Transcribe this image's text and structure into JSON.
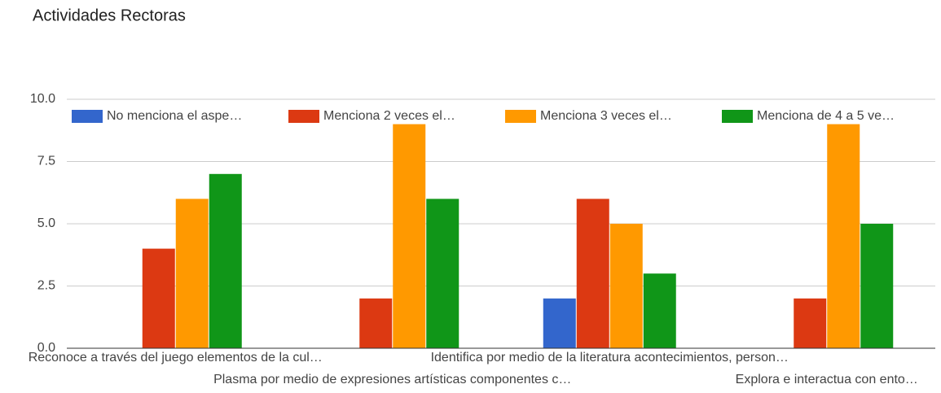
{
  "chart_data": {
    "type": "bar",
    "title": "Actividades Rectoras",
    "categories": [
      "Reconoce a través del juego elementos de la cul…",
      "Plasma por medio de expresiones artísticas componentes c…",
      "Identifica por medio de la literatura acontecimientos, person…",
      "Explora e interactua con ento…"
    ],
    "series": [
      {
        "name": "No menciona el aspe…",
        "color": "#3366cc",
        "values": [
          0,
          0,
          2,
          0
        ]
      },
      {
        "name": "Menciona 2 veces el…",
        "color": "#dc3912",
        "values": [
          4,
          2,
          6,
          2
        ]
      },
      {
        "name": "Menciona 3 veces el…",
        "color": "#ff9900",
        "values": [
          6,
          9,
          5,
          9
        ]
      },
      {
        "name": "Menciona de 4 a 5 ve…",
        "color": "#109618",
        "values": [
          7,
          6,
          3,
          5
        ]
      }
    ],
    "ylim": [
      0,
      10
    ],
    "yticks": [
      {
        "value": 0,
        "label": "0.0"
      },
      {
        "value": 2.5,
        "label": "2.5"
      },
      {
        "value": 5,
        "label": "5.0"
      },
      {
        "value": 7.5,
        "label": "7.5"
      },
      {
        "value": 10,
        "label": "10.0"
      }
    ],
    "grid": true,
    "legend": "top"
  }
}
